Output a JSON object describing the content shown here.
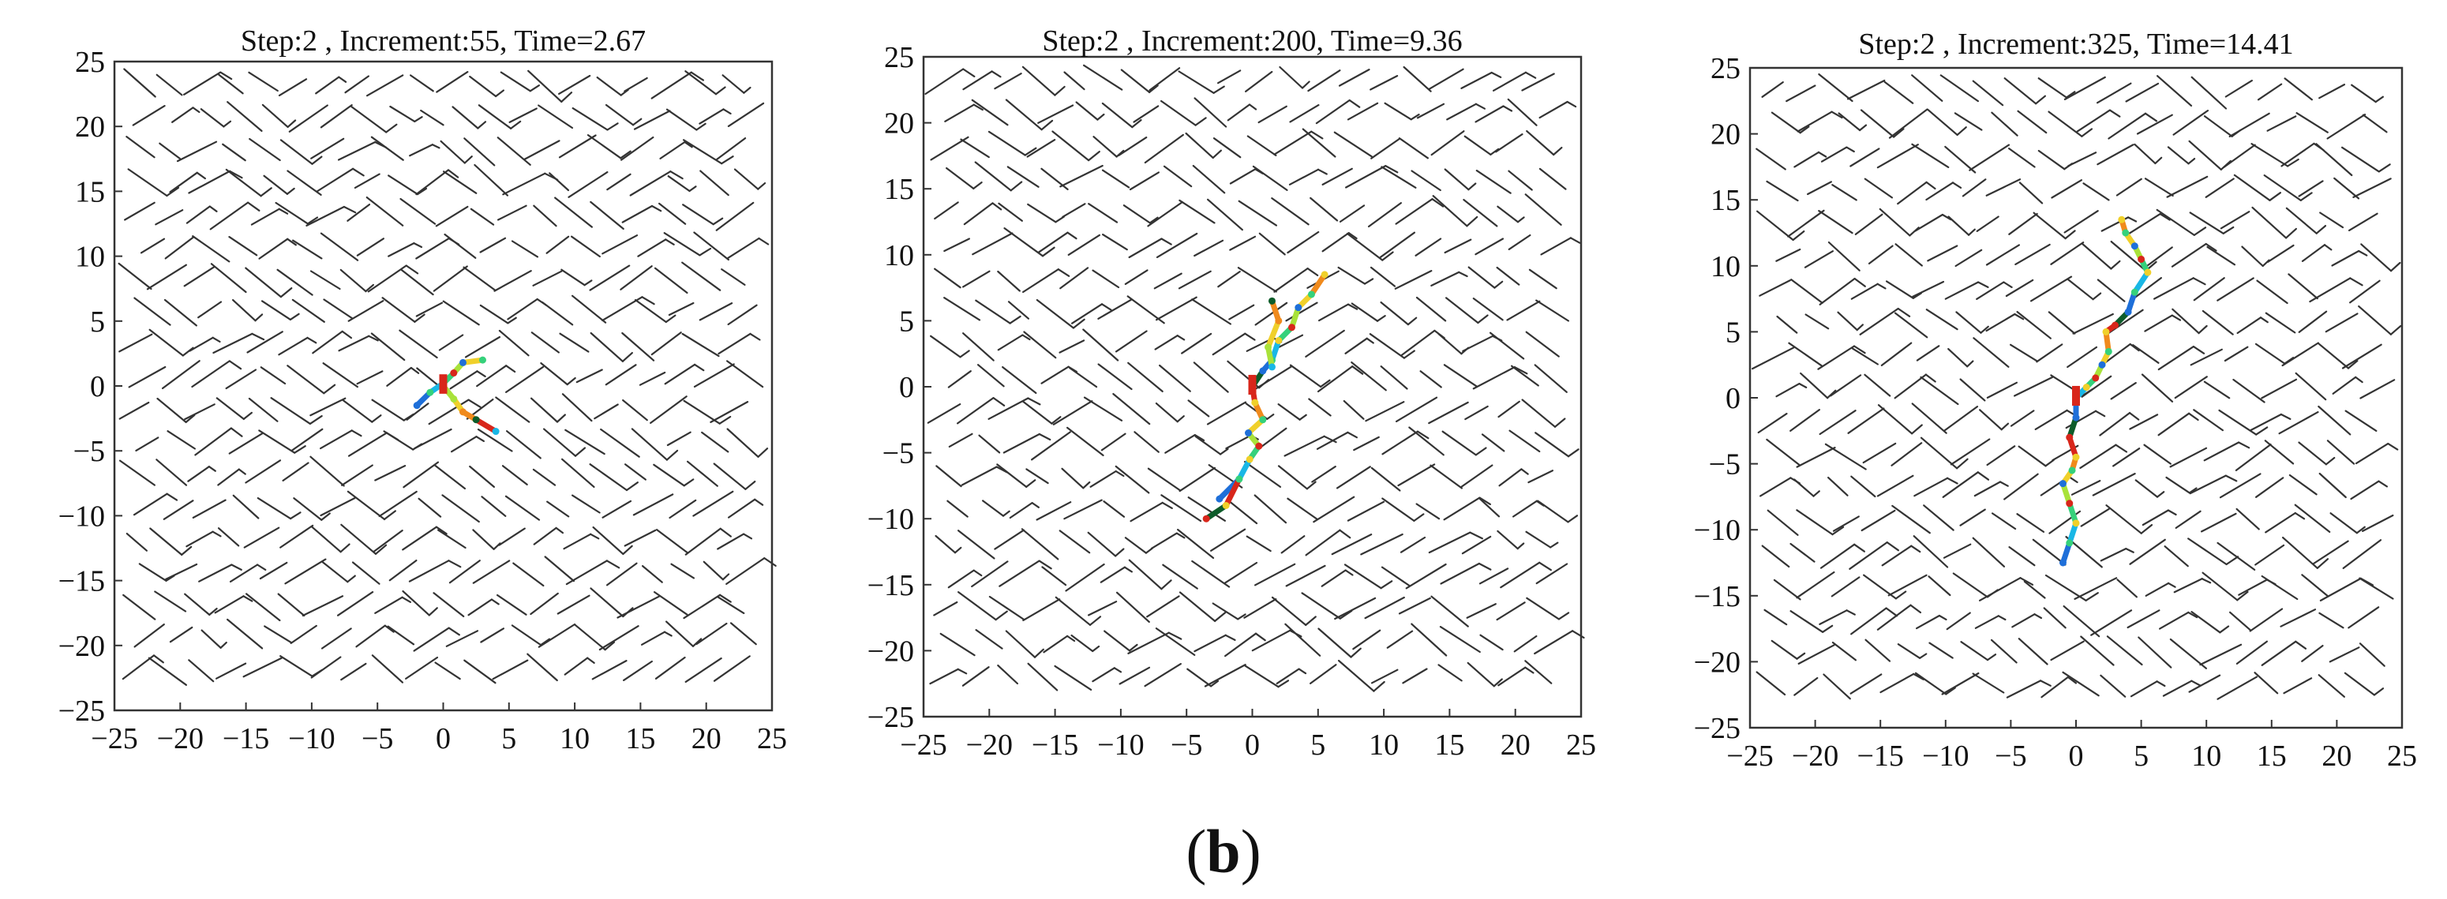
{
  "caption": {
    "open": "(",
    "letter": "b",
    "close": ")"
  },
  "colors": {
    "fracture_network": "#333333",
    "crack_colormap": [
      "#1e6fd9",
      "#19b7e6",
      "#35d17b",
      "#a9e23a",
      "#f0d02a",
      "#f08a1c",
      "#d8261b",
      "#0d5c2a"
    ]
  },
  "chart_data": [
    {
      "type": "scatter",
      "title": "Step:2 , Increment:55, Time=2.67",
      "xlabel": "",
      "ylabel": "",
      "xlim": [
        -25,
        25
      ],
      "ylim": [
        -25,
        25
      ],
      "xticks": [
        -25,
        -20,
        -15,
        -10,
        -5,
        0,
        5,
        10,
        15,
        20,
        25
      ],
      "yticks": [
        25,
        20,
        15,
        10,
        5,
        0,
        -5,
        -10,
        -15,
        -20,
        -25
      ],
      "xtick_labels": [
        "−25",
        "−20",
        "−15",
        "−10",
        "−5",
        "0",
        "5",
        "10",
        "15",
        "20",
        "25"
      ],
      "ytick_labels": [
        "25",
        "20",
        "15",
        "10",
        "5",
        "0",
        "−5",
        "−10",
        "−15",
        "−20",
        "−25"
      ],
      "grid": false,
      "series": [
        {
          "values": [
            [
              -2,
              -1.5
            ],
            [
              -1,
              -0.5
            ],
            [
              0,
              0.2
            ],
            [
              0.8,
              1
            ],
            [
              1.5,
              1.8
            ],
            [
              3,
              2
            ]
          ]
        },
        {
          "values": [
            [
              0,
              0
            ],
            [
              0.8,
              -1
            ],
            [
              1.5,
              -2
            ],
            [
              2.5,
              -2.6
            ],
            [
              4,
              -3.5
            ]
          ]
        }
      ]
    },
    {
      "type": "scatter",
      "title": "Step:2 , Increment:200, Time=9.36",
      "xlabel": "",
      "ylabel": "",
      "xlim": [
        -25,
        25
      ],
      "ylim": [
        -25,
        25
      ],
      "xticks": [
        -25,
        -20,
        -15,
        -10,
        -5,
        0,
        5,
        10,
        15,
        20,
        25
      ],
      "yticks": [
        25,
        20,
        15,
        10,
        5,
        0,
        -5,
        -10,
        -15,
        -20,
        -25
      ],
      "xtick_labels": [
        "−25",
        "−20",
        "−15",
        "−10",
        "−5",
        "0",
        "5",
        "10",
        "15",
        "20",
        "25"
      ],
      "ytick_labels": [
        "25",
        "20",
        "15",
        "10",
        "5",
        "0",
        "−5",
        "−10",
        "−15",
        "−20",
        "−25"
      ],
      "grid": false,
      "series": [
        {
          "values": [
            [
              -2.5,
              -8.5
            ],
            [
              -1,
              -7
            ],
            [
              -0.2,
              -5.5
            ],
            [
              0.5,
              -4.5
            ],
            [
              -0.3,
              -3.5
            ],
            [
              0.8,
              -2.5
            ],
            [
              0.2,
              -1.2
            ],
            [
              0,
              0
            ],
            [
              0.8,
              1.2
            ],
            [
              1.5,
              2
            ],
            [
              2,
              3.5
            ],
            [
              3,
              4.5
            ],
            [
              3.5,
              6
            ],
            [
              4.5,
              7
            ],
            [
              5.5,
              8.5
            ]
          ]
        },
        {
          "values": [
            [
              1.5,
              1.5
            ],
            [
              1.2,
              3
            ],
            [
              2,
              5
            ],
            [
              1.5,
              6.5
            ]
          ]
        },
        {
          "values": [
            [
              -1,
              -7
            ],
            [
              -2,
              -9
            ],
            [
              -3.5,
              -10
            ]
          ]
        }
      ]
    },
    {
      "type": "scatter",
      "title": "Step:2 , Increment:325, Time=14.41",
      "xlabel": "",
      "ylabel": "",
      "xlim": [
        -25,
        25
      ],
      "ylim": [
        -25,
        25
      ],
      "xticks": [
        -25,
        -20,
        -15,
        -10,
        -5,
        0,
        5,
        10,
        15,
        20,
        25
      ],
      "yticks": [
        25,
        20,
        15,
        10,
        5,
        0,
        -5,
        -10,
        -15,
        -20,
        -25
      ],
      "xtick_labels": [
        "−25",
        "−20",
        "−15",
        "−10",
        "−5",
        "0",
        "5",
        "10",
        "15",
        "20",
        "25"
      ],
      "ytick_labels": [
        "25",
        "20",
        "15",
        "10",
        "5",
        "0",
        "−5",
        "−10",
        "−15",
        "−20",
        "−25"
      ],
      "grid": false,
      "series": [
        {
          "values": [
            [
              -1,
              -12.5
            ],
            [
              -0.5,
              -11
            ],
            [
              0,
              -9.5
            ],
            [
              -0.5,
              -8
            ],
            [
              -1,
              -6.5
            ],
            [
              -0.3,
              -5.5
            ],
            [
              0,
              -4.5
            ],
            [
              -0.5,
              -3
            ],
            [
              0,
              -1.5
            ],
            [
              0,
              0
            ],
            [
              0.8,
              0.8
            ],
            [
              1.5,
              1.5
            ],
            [
              2,
              2.5
            ],
            [
              2.5,
              3.5
            ],
            [
              2.3,
              5
            ],
            [
              3,
              5.5
            ],
            [
              4,
              6.5
            ],
            [
              4.5,
              8
            ],
            [
              5.5,
              9.5
            ],
            [
              5,
              10.5
            ],
            [
              4.5,
              11.5
            ],
            [
              3.8,
              12.5
            ],
            [
              3.5,
              13.5
            ]
          ]
        }
      ]
    }
  ]
}
